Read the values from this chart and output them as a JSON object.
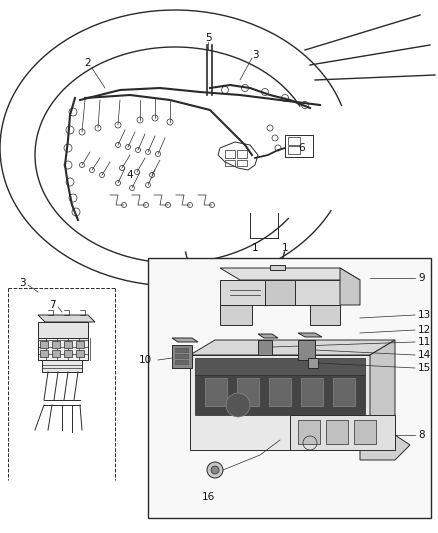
{
  "bg_color": "#ffffff",
  "line_color": "#2a2a2a",
  "label_color": "#111111",
  "label_fontsize": 7.5,
  "figsize": [
    4.38,
    5.33
  ],
  "dpi": 100
}
